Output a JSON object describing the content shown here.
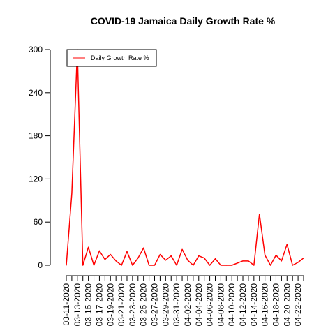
{
  "chart_data": {
    "type": "line",
    "title": "COVID-19 Jamaica Daily Growth Rate %",
    "xlabel": "",
    "ylabel": "",
    "ylim": [
      0,
      300
    ],
    "yticks": [
      0,
      60,
      120,
      180,
      240,
      300
    ],
    "legend": {
      "placement": "top-left"
    },
    "grid": false,
    "color": "#ff0000",
    "x_tick_labels": [
      "03-11-2020",
      "03-13-2020",
      "03-15-2020",
      "03-17-2020",
      "03-19-2020",
      "03-21-2020",
      "03-23-2020",
      "03-25-2020",
      "03-27-2020",
      "03-29-2020",
      "03-31-2020",
      "04-02-2020",
      "04-04-2020",
      "04-06-2020",
      "04-08-2020",
      "04-10-2020",
      "04-12-2020",
      "04-14-2020",
      "04-16-2020",
      "04-18-2020",
      "04-20-2020",
      "04-22-2020"
    ],
    "series": [
      {
        "name": "Daily Growth Rate %",
        "x": [
          "03-11-2020",
          "03-12-2020",
          "03-13-2020",
          "03-14-2020",
          "03-15-2020",
          "03-16-2020",
          "03-17-2020",
          "03-18-2020",
          "03-19-2020",
          "03-20-2020",
          "03-21-2020",
          "03-22-2020",
          "03-23-2020",
          "03-24-2020",
          "03-25-2020",
          "03-26-2020",
          "03-27-2020",
          "03-28-2020",
          "03-29-2020",
          "03-30-2020",
          "03-31-2020",
          "04-01-2020",
          "04-02-2020",
          "04-03-2020",
          "04-04-2020",
          "04-05-2020",
          "04-06-2020",
          "04-07-2020",
          "04-08-2020",
          "04-09-2020",
          "04-10-2020",
          "04-11-2020",
          "04-12-2020",
          "04-13-2020",
          "04-14-2020",
          "04-15-2020",
          "04-16-2020",
          "04-17-2020",
          "04-18-2020",
          "04-19-2020",
          "04-20-2020",
          "04-21-2020",
          "04-22-2020",
          "04-23-2020"
        ],
        "values": [
          0,
          100,
          300,
          0,
          25,
          0,
          20,
          8,
          15,
          6,
          0,
          19,
          0,
          10,
          24,
          0,
          0,
          15,
          7,
          13,
          0,
          22,
          7,
          0,
          13,
          10,
          0,
          9,
          0,
          0,
          0,
          3,
          6,
          6,
          0,
          71,
          14,
          0,
          14,
          6,
          29,
          0,
          4,
          10
        ]
      }
    ]
  }
}
